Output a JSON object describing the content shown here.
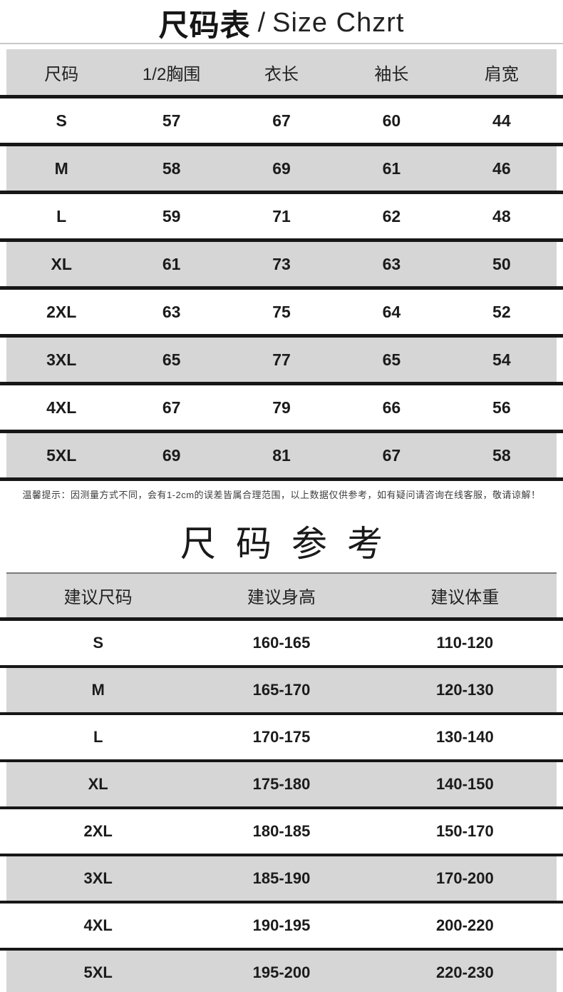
{
  "header": {
    "title_zh": "尺码表",
    "title_sep": "/",
    "title_en": "Size Chzrt"
  },
  "chart_data": [
    {
      "type": "table",
      "title": "尺码表 / Size Chzrt",
      "columns": [
        "尺码",
        "1/2胸围",
        "衣长",
        "袖长",
        "肩宽"
      ],
      "rows": [
        [
          "S",
          "57",
          "67",
          "60",
          "44"
        ],
        [
          "M",
          "58",
          "69",
          "61",
          "46"
        ],
        [
          "L",
          "59",
          "71",
          "62",
          "48"
        ],
        [
          "XL",
          "61",
          "73",
          "63",
          "50"
        ],
        [
          "2XL",
          "63",
          "75",
          "64",
          "52"
        ],
        [
          "3XL",
          "65",
          "77",
          "65",
          "54"
        ],
        [
          "4XL",
          "67",
          "79",
          "66",
          "56"
        ],
        [
          "5XL",
          "69",
          "81",
          "67",
          "58"
        ]
      ],
      "note": "温馨提示：因测量方式不同，会有1-2cm的误差皆属合理范围，以上数据仅供参考，如有疑问请咨询在线客服，敬请谅解！",
      "layout_hint": "zebra striped rows, gray header, thick black row separators"
    },
    {
      "type": "table",
      "title": "尺码参考",
      "columns": [
        "建议尺码",
        "建议身高",
        "建议体重"
      ],
      "rows": [
        [
          "S",
          "160-165",
          "110-120"
        ],
        [
          "M",
          "165-170",
          "120-130"
        ],
        [
          "L",
          "170-175",
          "130-140"
        ],
        [
          "XL",
          "175-180",
          "140-150"
        ],
        [
          "2XL",
          "180-185",
          "150-170"
        ],
        [
          "3XL",
          "185-190",
          "170-200"
        ],
        [
          "4XL",
          "190-195",
          "200-220"
        ],
        [
          "5XL",
          "195-200",
          "220-230"
        ]
      ],
      "layout_hint": "zebra striped rows, gray header, thick black row separators, last row clipped at bottom edge"
    }
  ],
  "colors": {
    "stripe_gray": "#d6d6d6",
    "separator_black": "#171717",
    "top_divider_gray": "#c8c8c8",
    "text_dark": "#1b1b1b",
    "note_gray": "#3d3d3d"
  }
}
